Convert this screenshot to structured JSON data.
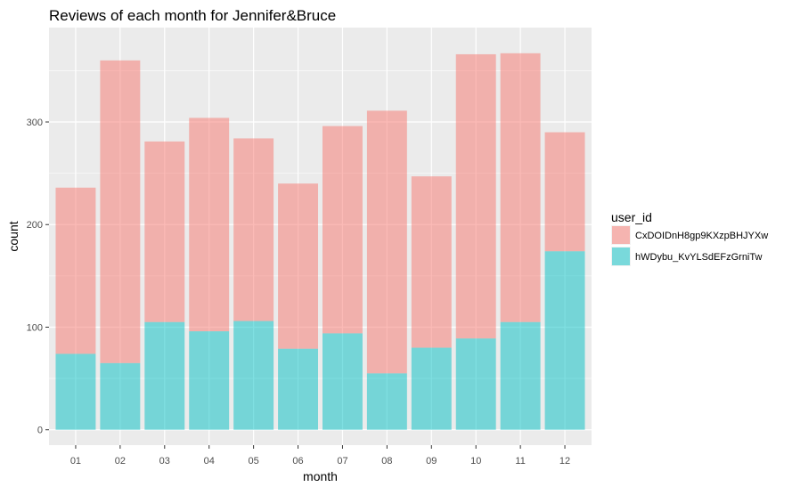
{
  "chart_data": {
    "type": "bar",
    "stacked": true,
    "title": "Reviews of each month for Jennifer&Bruce",
    "xlabel": "month",
    "ylabel": "count",
    "categories": [
      "01",
      "02",
      "03",
      "04",
      "05",
      "06",
      "07",
      "08",
      "09",
      "10",
      "11",
      "12"
    ],
    "series": [
      {
        "name": "hWDybu_KvYLSdEFzGrniTw",
        "color": "#00BFC4",
        "values": [
          74,
          65,
          105,
          96,
          106,
          79,
          94,
          55,
          80,
          89,
          105,
          174
        ]
      },
      {
        "name": "CxDOIDnH8gp9KXzpBHJYXw",
        "color": "#F8766D",
        "values": [
          162,
          295,
          176,
          208,
          178,
          161,
          202,
          256,
          167,
          277,
          262,
          116
        ]
      }
    ],
    "yticks": [
      0,
      100,
      200,
      300
    ],
    "ylim": [
      -15,
      392
    ],
    "grid": true,
    "bar_opacity": 0.5,
    "legend": {
      "title": "user_id",
      "position": "right",
      "entries": [
        "CxDOIDnH8gp9KXzpBHJYXw",
        "hWDybu_KvYLSdEFzGrniTw"
      ]
    }
  }
}
